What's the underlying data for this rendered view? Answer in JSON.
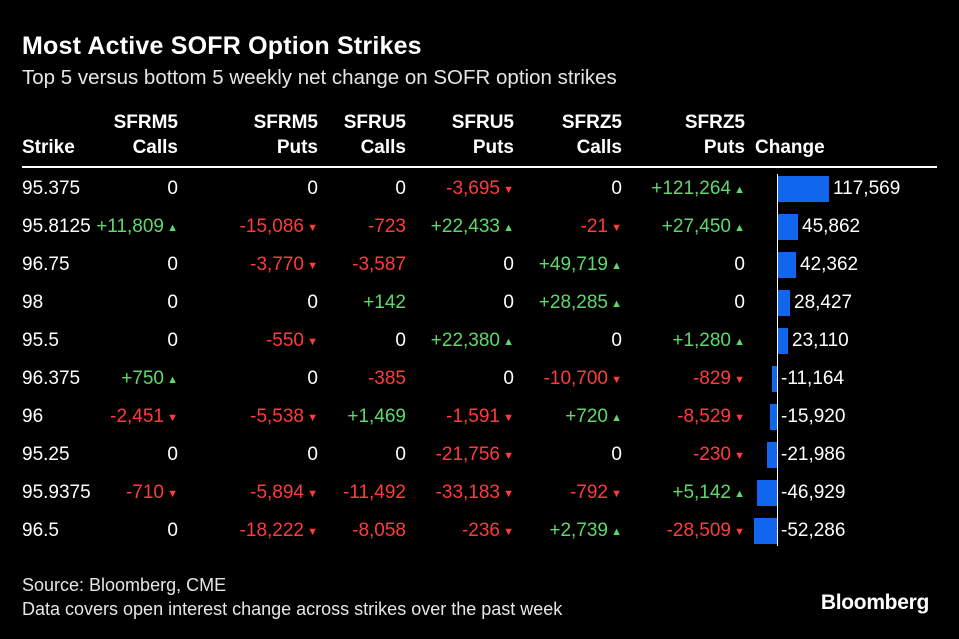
{
  "chart_data": {
    "type": "table",
    "title": "Most Active SOFR Option Strikes",
    "subtitle": "Top 5 versus bottom 5 weekly net change on SOFR option strikes",
    "columns": [
      {
        "top": "",
        "bottom": "Strike"
      },
      {
        "top": "SFRM5",
        "bottom": "Calls"
      },
      {
        "top": "SFRM5",
        "bottom": "Puts"
      },
      {
        "top": "SFRU5",
        "bottom": "Calls"
      },
      {
        "top": "SFRU5",
        "bottom": "Puts"
      },
      {
        "top": "SFRZ5",
        "bottom": "Calls"
      },
      {
        "top": "SFRZ5",
        "bottom": "Puts"
      },
      {
        "top": "",
        "bottom": "Change"
      }
    ],
    "rows": [
      {
        "strike": "95.375",
        "values": [
          0,
          0,
          0,
          -3695,
          0,
          121264
        ],
        "change": 117569,
        "change_label": "117,569"
      },
      {
        "strike": "95.8125",
        "values": [
          11809,
          -15086,
          -723,
          22433,
          -21,
          27450
        ],
        "change": 45862,
        "change_label": "45,862"
      },
      {
        "strike": "96.75",
        "values": [
          0,
          -3770,
          -3587,
          0,
          49719,
          0
        ],
        "change": 42362,
        "change_label": "42,362"
      },
      {
        "strike": "98",
        "values": [
          0,
          0,
          142,
          0,
          28285,
          0
        ],
        "change": 28427,
        "change_label": "28,427"
      },
      {
        "strike": "95.5",
        "values": [
          0,
          -550,
          0,
          22380,
          0,
          1280
        ],
        "change": 23110,
        "change_label": "23,110"
      },
      {
        "strike": "96.375",
        "values": [
          750,
          0,
          -385,
          0,
          -10700,
          -829
        ],
        "change": -11164,
        "change_label": "-11,164"
      },
      {
        "strike": "96",
        "values": [
          -2451,
          -5538,
          1469,
          -1591,
          720,
          -8529
        ],
        "change": -15920,
        "change_label": "-15,920"
      },
      {
        "strike": "95.25",
        "values": [
          0,
          0,
          0,
          -21756,
          0,
          -230
        ],
        "change": -21986,
        "change_label": "-21,986"
      },
      {
        "strike": "95.9375",
        "values": [
          -710,
          -5894,
          -11492,
          -33183,
          -792,
          5142
        ],
        "change": -46929,
        "change_label": "-46,929"
      },
      {
        "strike": "96.5",
        "values": [
          0,
          -18222,
          -8058,
          -236,
          2739,
          -28509
        ],
        "change": -52286,
        "change_label": "-52,286"
      }
    ],
    "arrows": {
      "show": [
        true,
        true,
        false,
        true,
        true,
        true
      ]
    }
  },
  "colors": {
    "positive": "#5fd86b",
    "negative": "#ff3b3b",
    "bar": "#1166ee"
  },
  "footer": {
    "source": "Source: Bloomberg, CME",
    "note": "Data covers open interest change across strikes over the past week",
    "logo": "Bloomberg"
  }
}
